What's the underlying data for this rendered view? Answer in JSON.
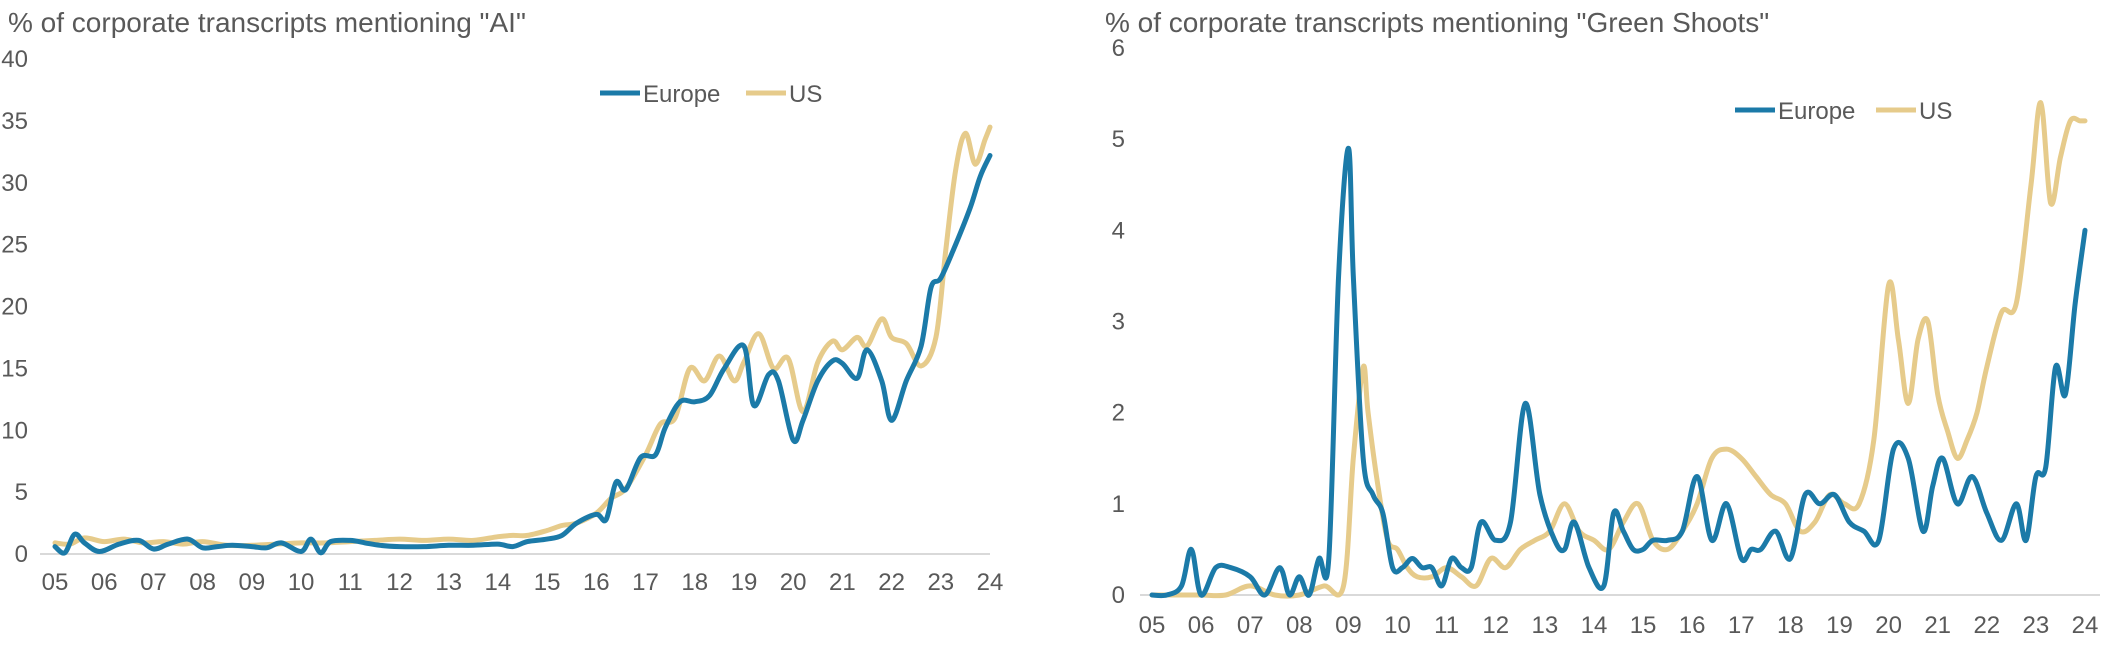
{
  "chart_data": [
    {
      "type": "line",
      "title": "% of corporate transcripts mentioning \"AI\"",
      "xlabel": "",
      "ylabel": "",
      "ylim": [
        0,
        40
      ],
      "yticks": [
        "0",
        "5",
        "10",
        "15",
        "20",
        "25",
        "30",
        "35",
        "40"
      ],
      "xticks": [
        "05",
        "06",
        "07",
        "08",
        "09",
        "10",
        "11",
        "12",
        "13",
        "14",
        "15",
        "16",
        "17",
        "18",
        "19",
        "20",
        "21",
        "22",
        "23",
        "24"
      ],
      "legend": [
        "Europe",
        "US"
      ],
      "legend_position": "top-center",
      "grid": false,
      "series": [
        {
          "name": "Europe",
          "color": "#1b7aa8",
          "x": [
            5.0,
            5.2,
            5.4,
            5.6,
            5.9,
            6.3,
            6.7,
            7.0,
            7.3,
            7.7,
            8.0,
            8.3,
            8.6,
            9.0,
            9.3,
            9.6,
            10.0,
            10.2,
            10.4,
            10.6,
            11.0,
            11.3,
            11.6,
            12.0,
            12.5,
            13.0,
            13.5,
            14.0,
            14.3,
            14.6,
            15.0,
            15.3,
            15.6,
            16.0,
            16.2,
            16.4,
            16.6,
            16.9,
            17.2,
            17.4,
            17.7,
            18.0,
            18.3,
            18.6,
            19.0,
            19.2,
            19.5,
            19.7,
            20.0,
            20.2,
            20.5,
            20.8,
            21.0,
            21.3,
            21.5,
            21.8,
            22.0,
            22.3,
            22.6,
            22.8,
            23.0,
            23.3,
            23.6,
            23.8,
            24.0
          ],
          "values": [
            0.6,
            0.1,
            1.6,
            0.9,
            0.2,
            0.8,
            1.1,
            0.4,
            0.8,
            1.2,
            0.5,
            0.6,
            0.7,
            0.6,
            0.5,
            0.9,
            0.2,
            1.2,
            0.1,
            1.0,
            1.1,
            0.9,
            0.7,
            0.6,
            0.6,
            0.7,
            0.7,
            0.8,
            0.6,
            1.0,
            1.2,
            1.5,
            2.5,
            3.2,
            2.8,
            5.8,
            5.2,
            7.8,
            8.0,
            10.2,
            12.3,
            12.3,
            12.8,
            15.0,
            16.8,
            12.0,
            14.5,
            14.0,
            9.2,
            10.8,
            14.0,
            15.6,
            15.4,
            14.2,
            16.5,
            14.0,
            10.8,
            14.0,
            16.8,
            21.5,
            22.3,
            25.0,
            28.0,
            30.5,
            32.2
          ]
        },
        {
          "name": "US",
          "color": "#e6cb8b",
          "x": [
            5.0,
            5.3,
            5.6,
            6.0,
            6.4,
            6.8,
            7.2,
            7.6,
            8.0,
            8.5,
            9.0,
            9.5,
            10.0,
            10.5,
            11.0,
            11.5,
            12.0,
            12.5,
            13.0,
            13.5,
            14.0,
            14.3,
            14.6,
            15.0,
            15.3,
            15.6,
            16.0,
            16.3,
            16.6,
            17.0,
            17.3,
            17.6,
            17.9,
            18.2,
            18.5,
            18.8,
            19.0,
            19.3,
            19.6,
            19.9,
            20.2,
            20.5,
            20.8,
            21.0,
            21.3,
            21.5,
            21.8,
            22.0,
            22.3,
            22.6,
            22.9,
            23.1,
            23.3,
            23.5,
            23.7,
            23.9,
            24.0
          ],
          "values": [
            0.9,
            0.8,
            1.3,
            1.0,
            1.2,
            0.9,
            1.0,
            0.8,
            1.0,
            0.7,
            0.7,
            0.8,
            0.9,
            0.9,
            1.0,
            1.1,
            1.2,
            1.1,
            1.2,
            1.1,
            1.4,
            1.5,
            1.5,
            1.9,
            2.3,
            2.5,
            3.3,
            4.5,
            5.3,
            8.0,
            10.5,
            11.0,
            15.0,
            14.0,
            16.0,
            14.0,
            15.5,
            17.8,
            15.0,
            15.8,
            11.5,
            15.5,
            17.2,
            16.5,
            17.5,
            16.8,
            19.0,
            17.5,
            17.0,
            15.2,
            17.5,
            24.5,
            31.0,
            34.0,
            31.5,
            33.5,
            34.5
          ]
        }
      ]
    },
    {
      "type": "line",
      "title": "% of corporate transcripts mentioning \"Green Shoots\"",
      "xlabel": "",
      "ylabel": "",
      "ylim": [
        0,
        6
      ],
      "yticks": [
        "0",
        "1",
        "2",
        "3",
        "4",
        "5",
        "6"
      ],
      "xticks": [
        "05",
        "06",
        "07",
        "08",
        "09",
        "10",
        "11",
        "12",
        "13",
        "14",
        "15",
        "16",
        "17",
        "18",
        "19",
        "20",
        "21",
        "22",
        "23",
        "24"
      ],
      "legend": [
        "Europe",
        "US"
      ],
      "legend_position": "top-right",
      "grid": false,
      "series": [
        {
          "name": "Europe",
          "color": "#1b7aa8",
          "x": [
            5.0,
            5.3,
            5.6,
            5.8,
            6.0,
            6.3,
            6.6,
            7.0,
            7.3,
            7.6,
            7.8,
            8.0,
            8.2,
            8.4,
            8.6,
            8.8,
            9.0,
            9.1,
            9.3,
            9.5,
            9.7,
            9.9,
            10.1,
            10.3,
            10.5,
            10.7,
            10.9,
            11.1,
            11.3,
            11.5,
            11.7,
            12.0,
            12.3,
            12.6,
            12.9,
            13.2,
            13.4,
            13.6,
            13.9,
            14.2,
            14.4,
            14.6,
            14.8,
            15.0,
            15.2,
            15.5,
            15.8,
            16.1,
            16.4,
            16.7,
            17.0,
            17.2,
            17.4,
            17.7,
            18.0,
            18.3,
            18.6,
            18.9,
            19.2,
            19.5,
            19.8,
            20.1,
            20.4,
            20.7,
            20.9,
            21.1,
            21.4,
            21.7,
            22.0,
            22.3,
            22.6,
            22.8,
            23.0,
            23.2,
            23.4,
            23.6,
            23.8,
            24.0
          ],
          "values": [
            0.0,
            0.0,
            0.1,
            0.5,
            0.0,
            0.3,
            0.3,
            0.2,
            0.0,
            0.3,
            0.0,
            0.2,
            0.0,
            0.4,
            0.4,
            3.5,
            4.9,
            3.5,
            1.5,
            1.1,
            0.9,
            0.3,
            0.3,
            0.4,
            0.3,
            0.3,
            0.1,
            0.4,
            0.3,
            0.3,
            0.8,
            0.6,
            0.8,
            2.1,
            1.1,
            0.6,
            0.5,
            0.8,
            0.3,
            0.1,
            0.9,
            0.7,
            0.5,
            0.5,
            0.6,
            0.6,
            0.7,
            1.3,
            0.6,
            1.0,
            0.4,
            0.5,
            0.5,
            0.7,
            0.4,
            1.1,
            1.0,
            1.1,
            0.8,
            0.7,
            0.6,
            1.6,
            1.5,
            0.7,
            1.2,
            1.5,
            1.0,
            1.3,
            0.9,
            0.6,
            1.0,
            0.6,
            1.3,
            1.4,
            2.5,
            2.2,
            3.2,
            4.0
          ]
        },
        {
          "name": "US",
          "color": "#e6cb8b",
          "x": [
            5.0,
            5.5,
            6.0,
            6.5,
            7.0,
            7.5,
            8.0,
            8.5,
            8.9,
            9.1,
            9.3,
            9.4,
            9.6,
            9.8,
            10.0,
            10.2,
            10.4,
            10.7,
            11.0,
            11.3,
            11.6,
            11.9,
            12.2,
            12.5,
            12.8,
            13.1,
            13.4,
            13.7,
            14.0,
            14.3,
            14.6,
            14.9,
            15.2,
            15.5,
            15.8,
            16.1,
            16.4,
            16.7,
            17.0,
            17.3,
            17.6,
            17.9,
            18.2,
            18.5,
            18.8,
            19.1,
            19.4,
            19.7,
            20.0,
            20.2,
            20.4,
            20.6,
            20.8,
            21.0,
            21.2,
            21.4,
            21.6,
            21.8,
            22.0,
            22.3,
            22.6,
            22.9,
            23.1,
            23.3,
            23.5,
            23.7,
            23.9,
            24.0
          ],
          "values": [
            0.0,
            0.0,
            0.0,
            0.0,
            0.1,
            0.0,
            0.0,
            0.1,
            0.1,
            1.5,
            2.5,
            2.0,
            1.2,
            0.6,
            0.5,
            0.3,
            0.2,
            0.2,
            0.3,
            0.2,
            0.1,
            0.4,
            0.3,
            0.5,
            0.6,
            0.7,
            1.0,
            0.7,
            0.6,
            0.5,
            0.8,
            1.0,
            0.6,
            0.5,
            0.7,
            1.0,
            1.5,
            1.6,
            1.5,
            1.3,
            1.1,
            1.0,
            0.7,
            0.8,
            1.1,
            1.0,
            1.0,
            1.7,
            3.4,
            2.8,
            2.1,
            2.8,
            3.0,
            2.2,
            1.8,
            1.5,
            1.7,
            2.0,
            2.5,
            3.1,
            3.2,
            4.5,
            5.4,
            4.3,
            4.8,
            5.2,
            5.2,
            5.2
          ]
        }
      ]
    }
  ]
}
